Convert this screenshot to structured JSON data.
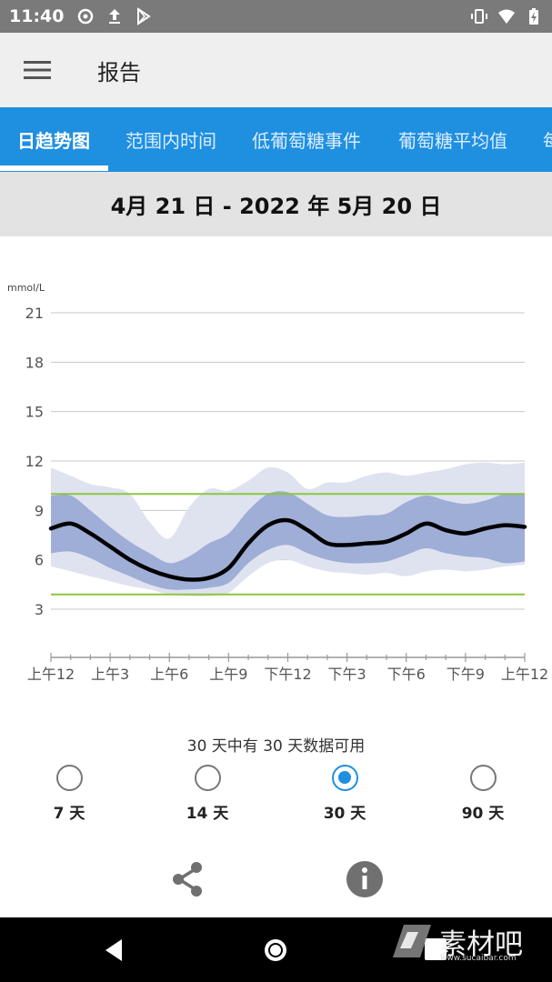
{
  "status_bar": {
    "time": "11:40",
    "left_icons": [
      "circle-dot-icon",
      "upload-icon",
      "play-store-icon"
    ],
    "right_icons": [
      "vibrate-icon",
      "wifi-icon",
      "battery-charging-icon"
    ]
  },
  "app_bar": {
    "title": "报告",
    "menu_icon": "hamburger-menu-icon"
  },
  "tabs": [
    {
      "label": "日趋势图",
      "active": true
    },
    {
      "label": "范围内时间",
      "active": false
    },
    {
      "label": "低葡萄糖事件",
      "active": false
    },
    {
      "label": "葡萄糖平均值",
      "active": false
    },
    {
      "label": "每",
      "active": false
    }
  ],
  "date_range": "4月 21 日 - 2022 年 5月 20 日",
  "chart_data": {
    "type": "area",
    "ylabel": "mmol/L",
    "ylim": [
      3,
      21
    ],
    "yticks": [
      "21",
      "18",
      "15",
      "12",
      "9",
      "6",
      "3"
    ],
    "xlabels": [
      "上午12",
      "上午3",
      "上午6",
      "上午9",
      "下午12",
      "下午3",
      "下午6",
      "下午9",
      "上午12"
    ],
    "target_range": [
      3.9,
      10.0
    ],
    "grid": true,
    "hours": [
      0,
      1,
      2,
      3,
      4,
      5,
      6,
      7,
      8,
      9,
      10,
      11,
      12,
      13,
      14,
      15,
      16,
      17,
      18,
      19,
      20,
      21,
      22,
      23,
      24
    ],
    "series": [
      {
        "name": "median",
        "values": [
          7.9,
          8.2,
          7.6,
          6.8,
          6.0,
          5.4,
          5.0,
          4.8,
          4.9,
          5.5,
          7.0,
          8.1,
          8.4,
          7.8,
          7.0,
          6.9,
          7.0,
          7.1,
          7.6,
          8.2,
          7.8,
          7.6,
          7.9,
          8.1,
          8.0
        ]
      },
      {
        "name": "p25-p75",
        "low": [
          6.4,
          6.5,
          6.1,
          5.5,
          5.0,
          4.5,
          4.2,
          4.2,
          4.3,
          4.6,
          5.8,
          6.6,
          6.9,
          6.4,
          6.0,
          5.8,
          5.8,
          5.9,
          6.3,
          6.7,
          6.4,
          6.2,
          6.1,
          5.8,
          5.9
        ],
        "high": [
          9.9,
          9.9,
          9.0,
          8.0,
          7.1,
          6.4,
          5.8,
          6.2,
          7.0,
          7.6,
          9.0,
          10.0,
          10.1,
          9.4,
          8.7,
          8.6,
          8.7,
          8.8,
          9.5,
          9.9,
          9.6,
          9.4,
          9.6,
          10.0,
          10.0
        ]
      },
      {
        "name": "p5-p95",
        "low": [
          5.6,
          5.3,
          5.0,
          4.7,
          4.4,
          4.2,
          3.9,
          3.8,
          3.8,
          4.0,
          5.0,
          5.8,
          6.0,
          5.6,
          5.3,
          5.2,
          5.1,
          5.2,
          5.0,
          5.3,
          5.4,
          5.3,
          5.4,
          5.6,
          5.7
        ],
        "high": [
          11.6,
          11.1,
          10.6,
          10.4,
          10.0,
          8.3,
          7.3,
          9.2,
          10.3,
          10.2,
          10.8,
          11.6,
          11.3,
          10.3,
          10.7,
          10.7,
          11.1,
          11.3,
          11.1,
          11.3,
          11.5,
          11.8,
          11.9,
          11.8,
          11.9
        ]
      }
    ],
    "colors": {
      "iqr_band": "#9eaed6",
      "outer_band": "#dfe3f0",
      "median_line": "#000000",
      "target_line": "#8cc63f",
      "grid": "#c8c8c8"
    }
  },
  "availability_text": "30 天中有 30 天数据可用",
  "range_options": [
    {
      "label": "7 天",
      "selected": false
    },
    {
      "label": "14 天",
      "selected": false
    },
    {
      "label": "30 天",
      "selected": true
    },
    {
      "label": "90 天",
      "selected": false
    }
  ],
  "actions": {
    "share_icon": "share-icon",
    "info_icon": "info-icon"
  },
  "nav_bar": {
    "back_icon": "back-triangle-icon",
    "home_icon": "home-circle-icon",
    "recents_icon": "recents-square-icon"
  },
  "watermark": {
    "text": "素材吧",
    "sub": "www.sucaibar.com"
  },
  "accent_color": "#1f8fe0"
}
